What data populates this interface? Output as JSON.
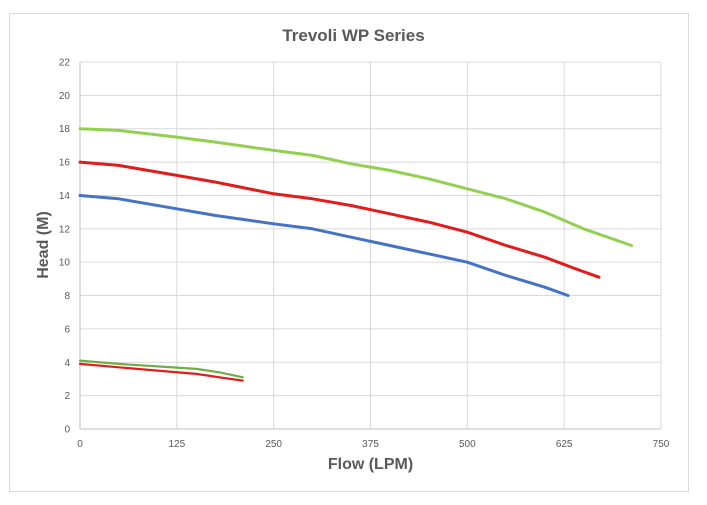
{
  "chart_data": {
    "type": "line",
    "title": "Trevoli WP Series",
    "xlabel": "Flow (LPM)",
    "ylabel": "Head (M)",
    "xlim": [
      0,
      750
    ],
    "ylim": [
      0,
      22
    ],
    "x_ticks": [
      0,
      125,
      250,
      375,
      500,
      625,
      750
    ],
    "y_ticks": [
      0,
      2,
      4,
      6,
      8,
      10,
      12,
      14,
      16,
      18,
      20,
      22
    ],
    "grid": true,
    "legend": "none",
    "series": [
      {
        "color": "#92d050",
        "width": 3,
        "points": [
          [
            0,
            18
          ],
          [
            50,
            17.9
          ],
          [
            125,
            17.5
          ],
          [
            175,
            17.2
          ],
          [
            250,
            16.7
          ],
          [
            300,
            16.4
          ],
          [
            350,
            15.9
          ],
          [
            400,
            15.5
          ],
          [
            450,
            15.0
          ],
          [
            500,
            14.4
          ],
          [
            550,
            13.8
          ],
          [
            600,
            13.0
          ],
          [
            650,
            12.0
          ],
          [
            712,
            11.0
          ]
        ]
      },
      {
        "color": "#e31b1b",
        "width": 3,
        "points": [
          [
            0,
            16
          ],
          [
            50,
            15.8
          ],
          [
            125,
            15.2
          ],
          [
            175,
            14.8
          ],
          [
            250,
            14.1
          ],
          [
            300,
            13.8
          ],
          [
            350,
            13.4
          ],
          [
            400,
            12.9
          ],
          [
            450,
            12.4
          ],
          [
            500,
            11.8
          ],
          [
            550,
            11.0
          ],
          [
            600,
            10.3
          ],
          [
            640,
            9.6
          ],
          [
            670,
            9.1
          ]
        ]
      },
      {
        "color": "#4472c4",
        "width": 3,
        "points": [
          [
            0,
            14
          ],
          [
            50,
            13.8
          ],
          [
            125,
            13.2
          ],
          [
            175,
            12.8
          ],
          [
            250,
            12.3
          ],
          [
            300,
            12.0
          ],
          [
            350,
            11.5
          ],
          [
            400,
            11.0
          ],
          [
            450,
            10.5
          ],
          [
            500,
            10.0
          ],
          [
            550,
            9.2
          ],
          [
            600,
            8.5
          ],
          [
            630,
            8.0
          ]
        ]
      },
      {
        "color": "#70ad47",
        "width": 2.2,
        "points": [
          [
            0,
            4.1
          ],
          [
            50,
            3.9
          ],
          [
            100,
            3.75
          ],
          [
            150,
            3.6
          ],
          [
            180,
            3.4
          ],
          [
            210,
            3.1
          ]
        ]
      },
      {
        "color": "#e31b1b",
        "width": 2.2,
        "points": [
          [
            0,
            3.9
          ],
          [
            50,
            3.7
          ],
          [
            100,
            3.5
          ],
          [
            150,
            3.3
          ],
          [
            180,
            3.1
          ],
          [
            210,
            2.9
          ]
        ]
      }
    ]
  }
}
